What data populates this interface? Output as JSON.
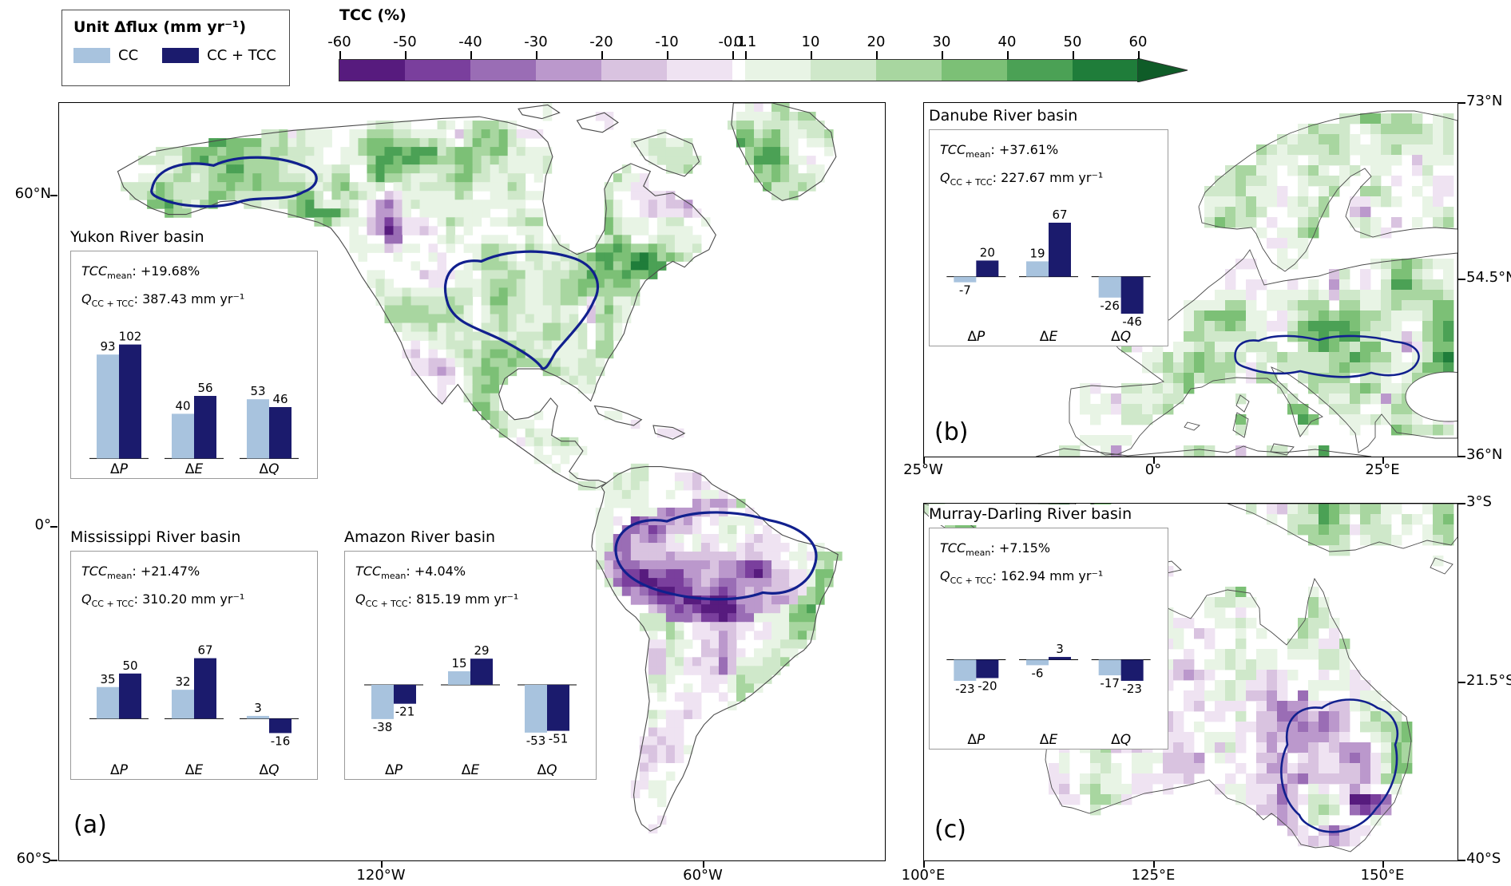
{
  "legend": {
    "title": "Unit Δflux (mm yr⁻¹)",
    "items": [
      {
        "label": "CC",
        "color": "#a8c3de"
      },
      {
        "label": "CC + TCC",
        "color": "#1b1b6d"
      }
    ]
  },
  "colorbar": {
    "title": "TCC (%)",
    "tick_labels": [
      "-60",
      "-50",
      "-40",
      "-30",
      "-20",
      "-10",
      "-0.1",
      "0.1",
      "10",
      "20",
      "30",
      "40",
      "50",
      "60"
    ],
    "segment_colors": [
      "#571b7e",
      "#7a3f9d",
      "#9a6db5",
      "#bb98cc",
      "#d9c3e0",
      "#efe3f2",
      "#ffffff",
      "#e8f4e5",
      "#cfe8ca",
      "#a8d6a0",
      "#7cc076",
      "#4ba155",
      "#1f7d3a"
    ],
    "arrow_color": "#0f5c28"
  },
  "map_style": {
    "basin_color": "#11208e",
    "coast_color": "#4a4a4a"
  },
  "panels": [
    {
      "id": "a",
      "label": "(a)",
      "lat_ticks": [
        "60°N",
        "0°",
        "60°S"
      ],
      "lon_ticks": [
        "120°W",
        "60°W"
      ]
    },
    {
      "id": "b",
      "label": "(b)",
      "lat_ticks": [
        "73°N",
        "54.5°N",
        "36°N"
      ],
      "lon_ticks": [
        "25°W",
        "0°",
        "25°E"
      ]
    },
    {
      "id": "c",
      "label": "(c)",
      "lat_ticks": [
        "3°S",
        "21.5°S",
        "40°S"
      ],
      "lon_ticks": [
        "100°E",
        "125°E",
        "150°E"
      ]
    }
  ],
  "chart_data": [
    {
      "type": "bar",
      "panel": "a",
      "title": "Yukon River basin",
      "stats": {
        "tcc_label": "TCC",
        "tcc_sub": "mean",
        "tcc_value": "+19.68%",
        "q_label": "Q",
        "q_sub": "CC + TCC",
        "q_value": "387.43 mm yr⁻¹"
      },
      "categories": [
        "ΔP",
        "ΔE",
        "ΔQ"
      ],
      "series": [
        {
          "name": "CC",
          "values": [
            93,
            40,
            53
          ]
        },
        {
          "name": "CC + TCC",
          "values": [
            102,
            56,
            46
          ]
        }
      ]
    },
    {
      "type": "bar",
      "panel": "a",
      "title": "Mississippi River basin",
      "stats": {
        "tcc_label": "TCC",
        "tcc_sub": "mean",
        "tcc_value": "+21.47%",
        "q_label": "Q",
        "q_sub": "CC + TCC",
        "q_value": "310.20 mm yr⁻¹"
      },
      "categories": [
        "ΔP",
        "ΔE",
        "ΔQ"
      ],
      "series": [
        {
          "name": "CC",
          "values": [
            35,
            32,
            3
          ]
        },
        {
          "name": "CC + TCC",
          "values": [
            50,
            67,
            -16
          ]
        }
      ]
    },
    {
      "type": "bar",
      "panel": "a",
      "title": "Amazon River basin",
      "stats": {
        "tcc_label": "TCC",
        "tcc_sub": "mean",
        "tcc_value": "+4.04%",
        "q_label": "Q",
        "q_sub": "CC + TCC",
        "q_value": "815.19 mm yr⁻¹"
      },
      "categories": [
        "ΔP",
        "ΔE",
        "ΔQ"
      ],
      "series": [
        {
          "name": "CC",
          "values": [
            -38,
            15,
            -53
          ]
        },
        {
          "name": "CC + TCC",
          "values": [
            -21,
            29,
            -51
          ]
        }
      ]
    },
    {
      "type": "bar",
      "panel": "b",
      "title": "Danube River basin",
      "stats": {
        "tcc_label": "TCC",
        "tcc_sub": "mean",
        "tcc_value": "+37.61%",
        "q_label": "Q",
        "q_sub": "CC + TCC",
        "q_value": "227.67 mm yr⁻¹"
      },
      "categories": [
        "ΔP",
        "ΔE",
        "ΔQ"
      ],
      "series": [
        {
          "name": "CC",
          "values": [
            -7,
            19,
            -26
          ]
        },
        {
          "name": "CC + TCC",
          "values": [
            20,
            67,
            -46
          ]
        }
      ]
    },
    {
      "type": "bar",
      "panel": "c",
      "title": "Murray-Darling River basin",
      "stats": {
        "tcc_label": "TCC",
        "tcc_sub": "mean",
        "tcc_value": "+7.15%",
        "q_label": "Q",
        "q_sub": "CC + TCC",
        "q_value": "162.94 mm yr⁻¹"
      },
      "categories": [
        "ΔP",
        "ΔE",
        "ΔQ"
      ],
      "series": [
        {
          "name": "CC",
          "values": [
            -23,
            -6,
            -17
          ]
        },
        {
          "name": "CC + TCC",
          "values": [
            -20,
            3,
            -23
          ]
        }
      ]
    }
  ]
}
